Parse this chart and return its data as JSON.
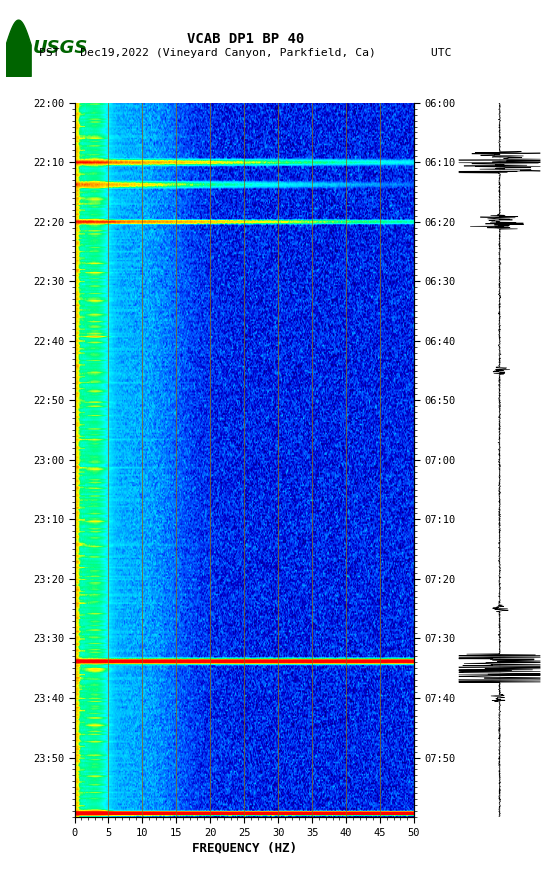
{
  "title_line1": "VCAB DP1 BP 40",
  "title_line2": "PST   Dec19,2022 (Vineyard Canyon, Parkfield, Ca)        UTC",
  "xlabel": "FREQUENCY (HZ)",
  "freq_min": 0,
  "freq_max": 50,
  "freq_ticks": [
    0,
    5,
    10,
    15,
    20,
    25,
    30,
    35,
    40,
    45,
    50
  ],
  "time_labels_pst": [
    "22:00",
    "22:10",
    "22:20",
    "22:30",
    "22:40",
    "22:50",
    "23:00",
    "23:10",
    "23:20",
    "23:30",
    "23:40",
    "23:50"
  ],
  "time_labels_utc": [
    "06:00",
    "06:10",
    "06:20",
    "06:30",
    "06:40",
    "06:50",
    "07:00",
    "07:10",
    "07:20",
    "07:30",
    "07:40",
    "07:50"
  ],
  "vertical_grid_freqs": [
    5,
    10,
    15,
    20,
    25,
    30,
    35,
    40,
    45
  ],
  "grid_color": "#8B6914",
  "fig_bg": "#ffffff",
  "usgs_green": "#006400",
  "spec_seed": 42,
  "n_time": 480,
  "n_freq": 500,
  "seis_color": "#000000",
  "cmap_colors": [
    [
      0.0,
      "#00008B"
    ],
    [
      0.1,
      "#0000CD"
    ],
    [
      0.22,
      "#0050FF"
    ],
    [
      0.35,
      "#00BFFF"
    ],
    [
      0.48,
      "#00FFFF"
    ],
    [
      0.6,
      "#00FF80"
    ],
    [
      0.7,
      "#FFFF00"
    ],
    [
      0.82,
      "#FFA500"
    ],
    [
      0.91,
      "#FF4500"
    ],
    [
      1.0,
      "#FF0000"
    ]
  ],
  "vmin_pct": 5,
  "vmax_pct": 99.5
}
